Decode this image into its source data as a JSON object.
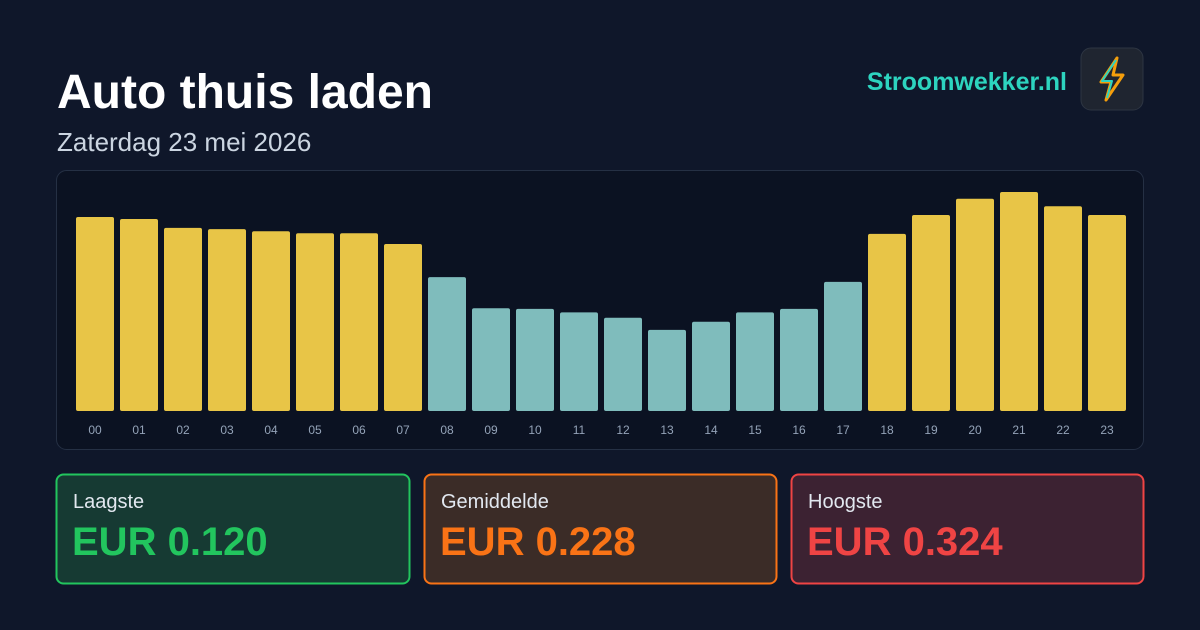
{
  "header": {
    "title": "Auto thuis laden",
    "subtitle": "Zaterdag 23 mei 2026",
    "brand": "Stroomwekker.nl"
  },
  "chart_data": {
    "type": "bar",
    "categories": [
      "00",
      "01",
      "02",
      "03",
      "04",
      "05",
      "06",
      "07",
      "08",
      "09",
      "10",
      "11",
      "12",
      "13",
      "14",
      "15",
      "16",
      "17",
      "18",
      "19",
      "20",
      "21",
      "22",
      "23"
    ],
    "values": [
      0.287,
      0.284,
      0.271,
      0.269,
      0.266,
      0.263,
      0.263,
      0.247,
      0.198,
      0.152,
      0.151,
      0.146,
      0.138,
      0.12,
      0.132,
      0.146,
      0.151,
      0.191,
      0.262,
      0.29,
      0.314,
      0.324,
      0.303,
      0.29
    ],
    "colors": [
      "#e8c547",
      "#e8c547",
      "#e8c547",
      "#e8c547",
      "#e8c547",
      "#e8c547",
      "#e8c547",
      "#e8c547",
      "#7fbcbc",
      "#7fbcbc",
      "#7fbcbc",
      "#7fbcbc",
      "#7fbcbc",
      "#7fbcbc",
      "#7fbcbc",
      "#7fbcbc",
      "#7fbcbc",
      "#7fbcbc",
      "#e8c547",
      "#e8c547",
      "#e8c547",
      "#e8c547",
      "#e8c547",
      "#e8c547"
    ],
    "ylim": [
      0,
      0.324
    ]
  },
  "cards": [
    {
      "label": "Laagste",
      "value": "EUR 0.120"
    },
    {
      "label": "Gemiddelde",
      "value": "EUR 0.228"
    },
    {
      "label": "Hoogste",
      "value": "EUR 0.324"
    }
  ]
}
